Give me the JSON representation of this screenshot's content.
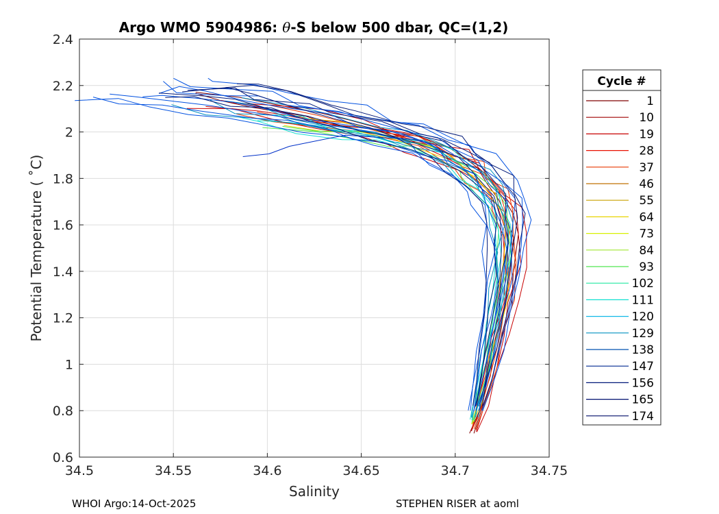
{
  "chart_data": {
    "type": "line",
    "title": "Argo WMO 5904986: θ-S below 500 dbar,  QC=(1,2)",
    "title_prefix": "Argo WMO 5904986: ",
    "title_symbol": "θ",
    "title_suffix": "-S below 500 dbar,  QC=(1,2)",
    "xlabel": "Salinity",
    "ylabel": "Potential Temperature ( ˚C)",
    "xlim": [
      34.5,
      34.75
    ],
    "ylim": [
      0.6,
      2.4
    ],
    "xticks": [
      "34.5",
      "34.55",
      "34.6",
      "34.65",
      "34.7",
      "34.75"
    ],
    "yticks": [
      "0.6",
      "0.8",
      "1",
      "1.2",
      "1.4",
      "1.6",
      "1.8",
      "2",
      "2.2",
      "2.4"
    ],
    "grid": true,
    "legend": {
      "title": "Cycle #",
      "placement": "right-outside",
      "entries": [
        {
          "label": "1",
          "color": "#7f0000"
        },
        {
          "label": "10",
          "color": "#a00000"
        },
        {
          "label": "19",
          "color": "#c80000"
        },
        {
          "label": "28",
          "color": "#e81000"
        },
        {
          "label": "37",
          "color": "#e83800"
        },
        {
          "label": "46",
          "color": "#c07000"
        },
        {
          "label": "55",
          "color": "#c8a000"
        },
        {
          "label": "64",
          "color": "#e8d400"
        },
        {
          "label": "73",
          "color": "#d8f000"
        },
        {
          "label": "84",
          "color": "#a0e830"
        },
        {
          "label": "93",
          "color": "#50e850"
        },
        {
          "label": "102",
          "color": "#20e8a0"
        },
        {
          "label": "111",
          "color": "#10e0d0"
        },
        {
          "label": "120",
          "color": "#10b8e8"
        },
        {
          "label": "129",
          "color": "#0090c0"
        },
        {
          "label": "138",
          "color": "#0050b0"
        },
        {
          "label": "147",
          "color": "#002890"
        },
        {
          "label": "156",
          "color": "#001878"
        },
        {
          "label": "165",
          "color": "#001070"
        },
        {
          "label": "174",
          "color": "#000c68"
        }
      ]
    },
    "series_groups": [
      {
        "color": "#7f0000",
        "profiles": 2,
        "points": [
          [
            34.709,
            0.7
          ],
          [
            34.714,
            0.8
          ],
          [
            34.719,
            0.95
          ],
          [
            34.723,
            1.1
          ],
          [
            34.727,
            1.25
          ],
          [
            34.73,
            1.4
          ],
          [
            34.731,
            1.55
          ],
          [
            34.729,
            1.65
          ],
          [
            34.724,
            1.72
          ],
          [
            34.718,
            1.78
          ],
          [
            34.711,
            1.84
          ],
          [
            34.702,
            1.89
          ],
          [
            34.69,
            1.93
          ],
          [
            34.675,
            1.97
          ],
          [
            34.66,
            2.0
          ],
          [
            34.64,
            2.04
          ],
          [
            34.62,
            2.08
          ],
          [
            34.6,
            2.12
          ],
          [
            34.58,
            2.15
          ],
          [
            34.56,
            2.17
          ]
        ]
      },
      {
        "color": "#c80000",
        "profiles": 4,
        "points": [
          [
            34.71,
            0.71
          ],
          [
            34.715,
            0.82
          ],
          [
            34.72,
            0.97
          ],
          [
            34.724,
            1.12
          ],
          [
            34.728,
            1.27
          ],
          [
            34.731,
            1.42
          ],
          [
            34.731,
            1.56
          ],
          [
            34.728,
            1.66
          ],
          [
            34.723,
            1.73
          ],
          [
            34.716,
            1.79
          ],
          [
            34.708,
            1.85
          ],
          [
            34.698,
            1.9
          ],
          [
            34.686,
            1.94
          ],
          [
            34.672,
            1.97
          ],
          [
            34.655,
            2.0
          ],
          [
            34.635,
            2.04
          ],
          [
            34.615,
            2.07
          ],
          [
            34.595,
            2.1
          ],
          [
            34.575,
            2.12
          ]
        ]
      },
      {
        "color": "#e83800",
        "profiles": 3,
        "points": [
          [
            34.71,
            0.72
          ],
          [
            34.714,
            0.83
          ],
          [
            34.719,
            0.98
          ],
          [
            34.723,
            1.13
          ],
          [
            34.727,
            1.28
          ],
          [
            34.73,
            1.43
          ],
          [
            34.73,
            1.57
          ],
          [
            34.727,
            1.67
          ],
          [
            34.722,
            1.74
          ],
          [
            34.714,
            1.8
          ],
          [
            34.706,
            1.86
          ],
          [
            34.696,
            1.9
          ],
          [
            34.684,
            1.94
          ],
          [
            34.67,
            1.97
          ],
          [
            34.652,
            2.0
          ],
          [
            34.632,
            2.03
          ],
          [
            34.612,
            2.06
          ],
          [
            34.592,
            2.09
          ]
        ]
      },
      {
        "color": "#e8d400",
        "profiles": 2,
        "points": [
          [
            34.709,
            0.74
          ],
          [
            34.713,
            0.85
          ],
          [
            34.717,
            1.0
          ],
          [
            34.721,
            1.15
          ],
          [
            34.725,
            1.3
          ],
          [
            34.727,
            1.45
          ],
          [
            34.727,
            1.58
          ],
          [
            34.724,
            1.67
          ],
          [
            34.719,
            1.74
          ],
          [
            34.712,
            1.8
          ],
          [
            34.704,
            1.85
          ],
          [
            34.694,
            1.89
          ],
          [
            34.682,
            1.93
          ],
          [
            34.668,
            1.96
          ],
          [
            34.65,
            1.99
          ],
          [
            34.63,
            2.02
          ],
          [
            34.61,
            2.05
          ]
        ]
      },
      {
        "color": "#50e850",
        "profiles": 2,
        "points": [
          [
            34.709,
            0.75
          ],
          [
            34.713,
            0.86
          ],
          [
            34.717,
            1.01
          ],
          [
            34.72,
            1.16
          ],
          [
            34.724,
            1.31
          ],
          [
            34.726,
            1.46
          ],
          [
            34.726,
            1.58
          ],
          [
            34.723,
            1.67
          ],
          [
            34.717,
            1.74
          ],
          [
            34.71,
            1.8
          ],
          [
            34.702,
            1.85
          ],
          [
            34.692,
            1.89
          ],
          [
            34.68,
            1.93
          ],
          [
            34.665,
            1.96
          ],
          [
            34.648,
            1.98
          ],
          [
            34.628,
            2.01
          ],
          [
            34.608,
            2.04
          ]
        ]
      },
      {
        "color": "#10e0d0",
        "profiles": 3,
        "points": [
          [
            34.709,
            0.76
          ],
          [
            34.712,
            0.87
          ],
          [
            34.716,
            1.02
          ],
          [
            34.72,
            1.17
          ],
          [
            34.723,
            1.32
          ],
          [
            34.725,
            1.47
          ],
          [
            34.725,
            1.59
          ],
          [
            34.722,
            1.68
          ],
          [
            34.716,
            1.75
          ],
          [
            34.709,
            1.81
          ],
          [
            34.701,
            1.86
          ],
          [
            34.691,
            1.9
          ],
          [
            34.679,
            1.94
          ],
          [
            34.664,
            1.97
          ],
          [
            34.646,
            1.99
          ],
          [
            34.626,
            2.02
          ],
          [
            34.606,
            2.05
          ],
          [
            34.588,
            2.07
          ]
        ]
      },
      {
        "color": "#0090c0",
        "profiles": 4,
        "points": [
          [
            34.71,
            0.77
          ],
          [
            34.713,
            0.88
          ],
          [
            34.717,
            1.03
          ],
          [
            34.721,
            1.18
          ],
          [
            34.724,
            1.33
          ],
          [
            34.726,
            1.48
          ],
          [
            34.726,
            1.6
          ],
          [
            34.723,
            1.69
          ],
          [
            34.717,
            1.76
          ],
          [
            34.71,
            1.82
          ],
          [
            34.702,
            1.87
          ],
          [
            34.692,
            1.91
          ],
          [
            34.68,
            1.95
          ],
          [
            34.664,
            1.98
          ],
          [
            34.645,
            2.01
          ],
          [
            34.625,
            2.04
          ],
          [
            34.605,
            2.07
          ],
          [
            34.585,
            2.1
          ],
          [
            34.568,
            2.12
          ]
        ]
      },
      {
        "color": "#0050e0",
        "profiles": 8,
        "points": [
          [
            34.711,
            0.8
          ],
          [
            34.714,
            0.91
          ],
          [
            34.718,
            1.06
          ],
          [
            34.722,
            1.21
          ],
          [
            34.725,
            1.36
          ],
          [
            34.727,
            1.5
          ],
          [
            34.727,
            1.61
          ],
          [
            34.724,
            1.7
          ],
          [
            34.718,
            1.77
          ],
          [
            34.711,
            1.83
          ],
          [
            34.702,
            1.88
          ],
          [
            34.692,
            1.92
          ],
          [
            34.68,
            1.96
          ],
          [
            34.664,
            2.0
          ],
          [
            34.645,
            2.03
          ],
          [
            34.625,
            2.07
          ],
          [
            34.605,
            2.1
          ],
          [
            34.585,
            2.13
          ],
          [
            34.565,
            2.15
          ],
          [
            34.545,
            2.17
          ],
          [
            34.533,
            2.18
          ]
        ]
      },
      {
        "color": "#001878",
        "profiles": 6,
        "points": [
          [
            34.712,
            0.82
          ],
          [
            34.715,
            0.93
          ],
          [
            34.719,
            1.08
          ],
          [
            34.722,
            1.23
          ],
          [
            34.725,
            1.38
          ],
          [
            34.726,
            1.52
          ],
          [
            34.726,
            1.63
          ],
          [
            34.723,
            1.72
          ],
          [
            34.717,
            1.79
          ],
          [
            34.71,
            1.85
          ],
          [
            34.7,
            1.9
          ],
          [
            34.688,
            1.95
          ],
          [
            34.673,
            1.99
          ],
          [
            34.655,
            2.03
          ],
          [
            34.635,
            2.07
          ],
          [
            34.615,
            2.11
          ],
          [
            34.595,
            2.15
          ],
          [
            34.578,
            2.18
          ],
          [
            34.56,
            2.19
          ]
        ]
      },
      {
        "color": "#0030c8",
        "profiles": 1,
        "points": [
          [
            34.7,
            1.9
          ],
          [
            34.69,
            1.94
          ],
          [
            34.675,
            1.97
          ],
          [
            34.66,
            1.98
          ],
          [
            34.645,
            1.98
          ],
          [
            34.63,
            1.96
          ],
          [
            34.615,
            1.94
          ],
          [
            34.6,
            1.91
          ],
          [
            34.591,
            1.88
          ]
        ]
      }
    ]
  },
  "footer": {
    "left": "WHOI Argo:14-Oct-2025",
    "right": "STEPHEN RISER at aoml"
  }
}
